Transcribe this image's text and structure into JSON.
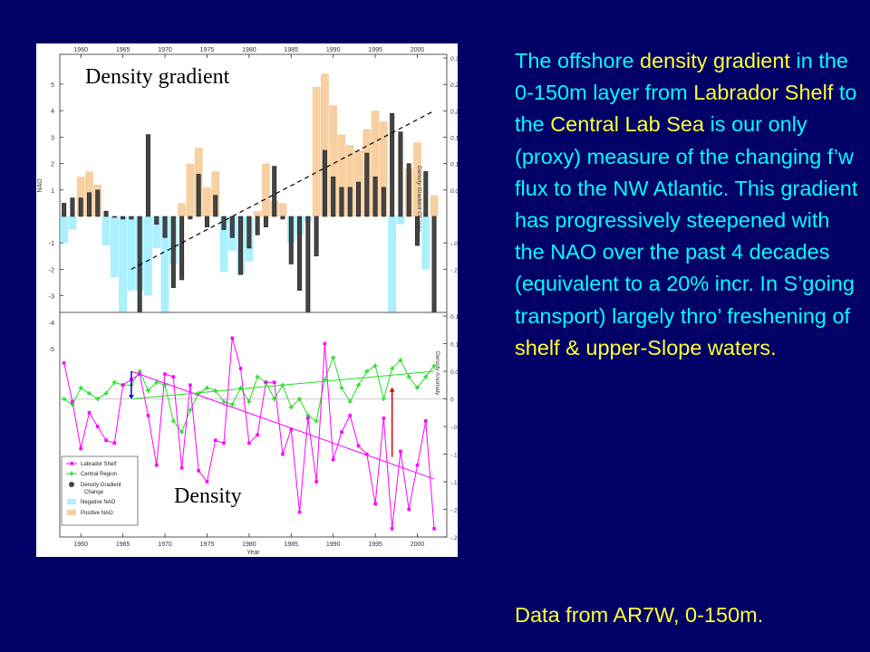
{
  "colors": {
    "background": "#000066",
    "cyan": "#00ffff",
    "yellow": "#ffff33",
    "labrador": "#ff00ff",
    "central": "#22dd22",
    "gradient_bar": "#444444",
    "neg_nao": "#aaf0ff",
    "pos_nao": "#f7cfa0"
  },
  "slide_text": {
    "seg1": "The offshore ",
    "seg2": "density gradient",
    "seg3": " in the 0-150m layer from ",
    "seg4": "Labrador Shelf",
    "seg5": " to the ",
    "seg6": "Central Lab Sea",
    "seg7": " is our only (proxy) measure of the changing f’w flux to the NW Atlantic. This gradient has progressively steepened with the NAO over the past 4 decades (equivalent to a 20% incr. In S’going transport) largely thro’ freshening of ",
    "seg8": "shelf & upper-Slope waters.",
    "footer": "Data from AR7W, 0-150m."
  },
  "chart_labels": {
    "density_gradient": "Density gradient",
    "density": "Density"
  },
  "chart_data": [
    {
      "type": "bar",
      "title": "Density gradient",
      "ylabel": "NAO",
      "y2label": "Density Gradient Change",
      "ylim": [
        -6,
        6
      ],
      "y2lim": [
        -0.1,
        0.3
      ],
      "left_ticks": [
        -5,
        -4,
        -3,
        -2,
        -1,
        1,
        2,
        3,
        4,
        5
      ],
      "right_ticks": [
        -0.1,
        -0.05,
        0.05,
        0.1,
        0.15,
        0.2,
        0.25,
        0.3
      ],
      "years": [
        1958,
        1959,
        1960,
        1961,
        1962,
        1963,
        1964,
        1965,
        1966,
        1967,
        1968,
        1969,
        1970,
        1971,
        1972,
        1973,
        1974,
        1975,
        1976,
        1977,
        1978,
        1979,
        1980,
        1981,
        1982,
        1983,
        1984,
        1985,
        1986,
        1987,
        1988,
        1989,
        1990,
        1991,
        1992,
        1993,
        1994,
        1995,
        1996,
        1997,
        1998,
        1999,
        2000,
        2001,
        2002
      ],
      "series": [
        {
          "name": "Negative NAO / Positive NAO",
          "values": [
            -1,
            -0.5,
            1.5,
            1.7,
            1.2,
            -1.1,
            -2.3,
            -3.6,
            -2.8,
            -2.8,
            -3,
            -1.2,
            -5,
            -1.8,
            0.5,
            2,
            2.6,
            1.1,
            1.7,
            -2.1,
            -1.3,
            -2.2,
            -1.7,
            0.2,
            2,
            0.6,
            0.5,
            -1,
            -0.7,
            -0.2,
            4.9,
            5.4,
            4.2,
            3.1,
            2.7,
            2.5,
            3.3,
            4.0,
            3.6,
            -3.8,
            -0.3,
            1.8,
            2.8,
            -2.0,
            0.8
          ]
        },
        {
          "name": "Density Gradient Change",
          "values": [
            0.025,
            0.035,
            0.035,
            0.045,
            0.05,
            0.01,
            0,
            -0.005,
            -0.005,
            -0.245,
            0.155,
            -0.015,
            -0.04,
            -0.135,
            -0.12,
            -0.005,
            0.08,
            -0.02,
            0.04,
            -0.025,
            -0.04,
            -0.11,
            -0.06,
            -0.035,
            -0.02,
            0.095,
            -0.005,
            -0.09,
            -0.14,
            -0.185,
            -0.075,
            0.125,
            0.075,
            0.055,
            0.055,
            0.065,
            0.12,
            0.075,
            0.055,
            0.195,
            0.16,
            0.1,
            -0.055,
            0.085,
            -0.2
          ]
        }
      ]
    },
    {
      "type": "line",
      "title": "Density",
      "xlabel": "Year",
      "ylabel": "Density Anomaly",
      "ylim": [
        -0.25,
        0.15
      ],
      "yticks": [
        -0.25,
        -0.2,
        -0.15,
        -0.1,
        -0.05,
        0,
        0.05,
        0.1,
        0.15
      ],
      "xticks": [
        1960,
        1965,
        1970,
        1975,
        1980,
        1985,
        1990,
        1995,
        2000
      ],
      "x": [
        1958,
        1959,
        1960,
        1961,
        1962,
        1963,
        1964,
        1965,
        1966,
        1967,
        1968,
        1969,
        1970,
        1971,
        1972,
        1973,
        1974,
        1975,
        1976,
        1977,
        1978,
        1979,
        1980,
        1981,
        1982,
        1983,
        1984,
        1985,
        1986,
        1987,
        1988,
        1989,
        1990,
        1991,
        1992,
        1993,
        1994,
        1995,
        1996,
        1997,
        1998,
        1999,
        2000,
        2001,
        2002
      ],
      "series": [
        {
          "name": "Labrador Shelf",
          "values": [
            0.065,
            -0.005,
            -0.09,
            -0.025,
            -0.05,
            -0.075,
            -0.08,
            0.025,
            0.035,
            0.045,
            -0.03,
            -0.12,
            0.045,
            0.04,
            -0.125,
            0.025,
            -0.13,
            -0.15,
            -0.075,
            -0.08,
            0.11,
            0.055,
            -0.08,
            -0.065,
            0.03,
            0.03,
            -0.1,
            -0.055,
            -0.205,
            -0.035,
            -0.15,
            0.1,
            -0.11,
            -0.06,
            -0.03,
            -0.085,
            -0.1,
            -0.19,
            -0.035,
            -0.235,
            -0.095,
            -0.2,
            -0.12,
            -0.04,
            -0.235
          ]
        },
        {
          "name": "Central Region",
          "values": [
            0,
            -0.01,
            0.02,
            0.01,
            0,
            0.01,
            0.03,
            0.025,
            0.025,
            0.05,
            0.015,
            0.03,
            0.025,
            -0.04,
            -0.06,
            -0.02,
            0.01,
            0.02,
            0.015,
            -0.005,
            -0.01,
            0.02,
            -0.005,
            0.04,
            0.03,
            0,
            0.025,
            -0.015,
            0,
            -0.03,
            -0.04,
            0.035,
            0.075,
            0.02,
            -0.005,
            0.025,
            0.05,
            0.06,
            0,
            0.055,
            0.07,
            0.04,
            0.02,
            0.04,
            0.06
          ]
        }
      ],
      "trendlines": [
        {
          "name": "Labrador Shelf trend",
          "from": [
            1966,
            0.05
          ],
          "to": [
            2002,
            -0.145
          ]
        },
        {
          "name": "Central Region trend",
          "from": [
            1966,
            0
          ],
          "to": [
            2002,
            0.05
          ]
        }
      ],
      "legend": [
        "Labrador Shelf",
        "Central Region",
        "Density Gradient Change",
        "Negative NAO",
        "Positive NAO"
      ],
      "legend_position": "bottom-left"
    }
  ]
}
